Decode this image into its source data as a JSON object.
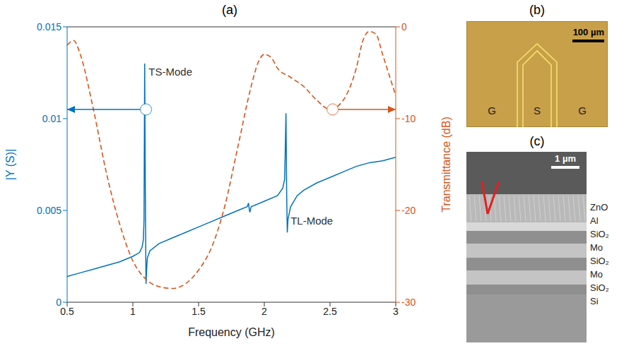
{
  "chart_data": {
    "type": "line",
    "title": "(a)",
    "x_label": "Frequency (GHz)",
    "y_label": "|Y (S)|",
    "y2_label": "Transmittance (dB)",
    "xlim": [
      0.5,
      3
    ],
    "xticks": [
      0.5,
      1,
      1.5,
      2,
      2.5,
      3
    ],
    "ylim": [
      0,
      0.015
    ],
    "yticks": [
      0,
      0.005,
      0.01,
      0.015
    ],
    "y2lim": [
      -30,
      0
    ],
    "y2ticks": [
      -30,
      -20,
      -10,
      0
    ],
    "series": [
      {
        "name": "|Y (S)|",
        "color": "#0072bd",
        "line_style": "solid",
        "x": [
          0.5,
          0.6,
          0.7,
          0.8,
          0.9,
          1.0,
          1.05,
          1.07,
          1.08,
          1.085,
          1.09,
          1.095,
          1.1,
          1.105,
          1.11,
          1.13,
          1.2,
          1.3,
          1.4,
          1.5,
          1.6,
          1.7,
          1.8,
          1.87,
          1.88,
          1.885,
          1.89,
          1.9,
          2.0,
          2.1,
          2.14,
          2.155,
          2.165,
          2.17,
          2.175,
          2.18,
          2.2,
          2.25,
          2.3,
          2.4,
          2.5,
          2.6,
          2.7,
          2.8,
          2.9,
          3.0
        ],
        "values": [
          0.0014,
          0.0016,
          0.0018,
          0.002,
          0.0022,
          0.0025,
          0.0027,
          0.003,
          0.0034,
          0.0045,
          0.013,
          0.006,
          0.001,
          0.0018,
          0.0024,
          0.0028,
          0.0032,
          0.0035,
          0.0038,
          0.0041,
          0.0044,
          0.0047,
          0.005,
          0.0052,
          0.0054,
          0.0051,
          0.0049,
          0.0052,
          0.0055,
          0.0058,
          0.0062,
          0.0067,
          0.0103,
          0.006,
          0.0038,
          0.0045,
          0.0052,
          0.0058,
          0.0061,
          0.0065,
          0.0068,
          0.0071,
          0.0074,
          0.0076,
          0.0077,
          0.0079
        ]
      },
      {
        "name": "Transmittance (dB)",
        "color": "#d95319",
        "line_style": "dashed",
        "axis": "y2",
        "x": [
          0.5,
          0.55,
          0.6,
          0.7,
          0.8,
          0.9,
          1.0,
          1.1,
          1.2,
          1.3,
          1.4,
          1.5,
          1.6,
          1.7,
          1.8,
          1.9,
          1.95,
          2.0,
          2.05,
          2.1,
          2.2,
          2.3,
          2.4,
          2.5,
          2.6,
          2.7,
          2.75,
          2.8,
          2.85,
          2.9,
          3.0
        ],
        "values": [
          -2,
          -1.5,
          -3,
          -9,
          -16,
          -21.5,
          -25.5,
          -27.5,
          -28.3,
          -28.5,
          -28,
          -26.5,
          -24,
          -19.5,
          -13,
          -6.5,
          -4,
          -3,
          -3.3,
          -4.5,
          -5.5,
          -6.5,
          -8,
          -9,
          -8,
          -4.5,
          -1.5,
          -0.5,
          -0.8,
          -3,
          -7.5
        ]
      }
    ],
    "annotations": [
      {
        "text": "TS-Mode",
        "x": 1.12,
        "y": 0.0125
      },
      {
        "text": "TL-Mode",
        "x": 2.2,
        "y": 0.0044
      }
    ],
    "arrows": [
      {
        "x": 1.1,
        "y": 0.0105,
        "axis": "y"
      },
      {
        "x": 2.52,
        "y": -9,
        "axis": "y2"
      }
    ]
  },
  "panel_b": {
    "title": "(b)",
    "scale_bar": "100 µm",
    "pads": [
      "G",
      "S",
      "G"
    ]
  },
  "panel_c": {
    "title": "(c)",
    "scale_bar": "1 µm",
    "layers": [
      "ZnO",
      "Al",
      "SiO₂",
      "Mo",
      "SiO₂",
      "Mo",
      "SiO₂",
      "Si"
    ]
  }
}
